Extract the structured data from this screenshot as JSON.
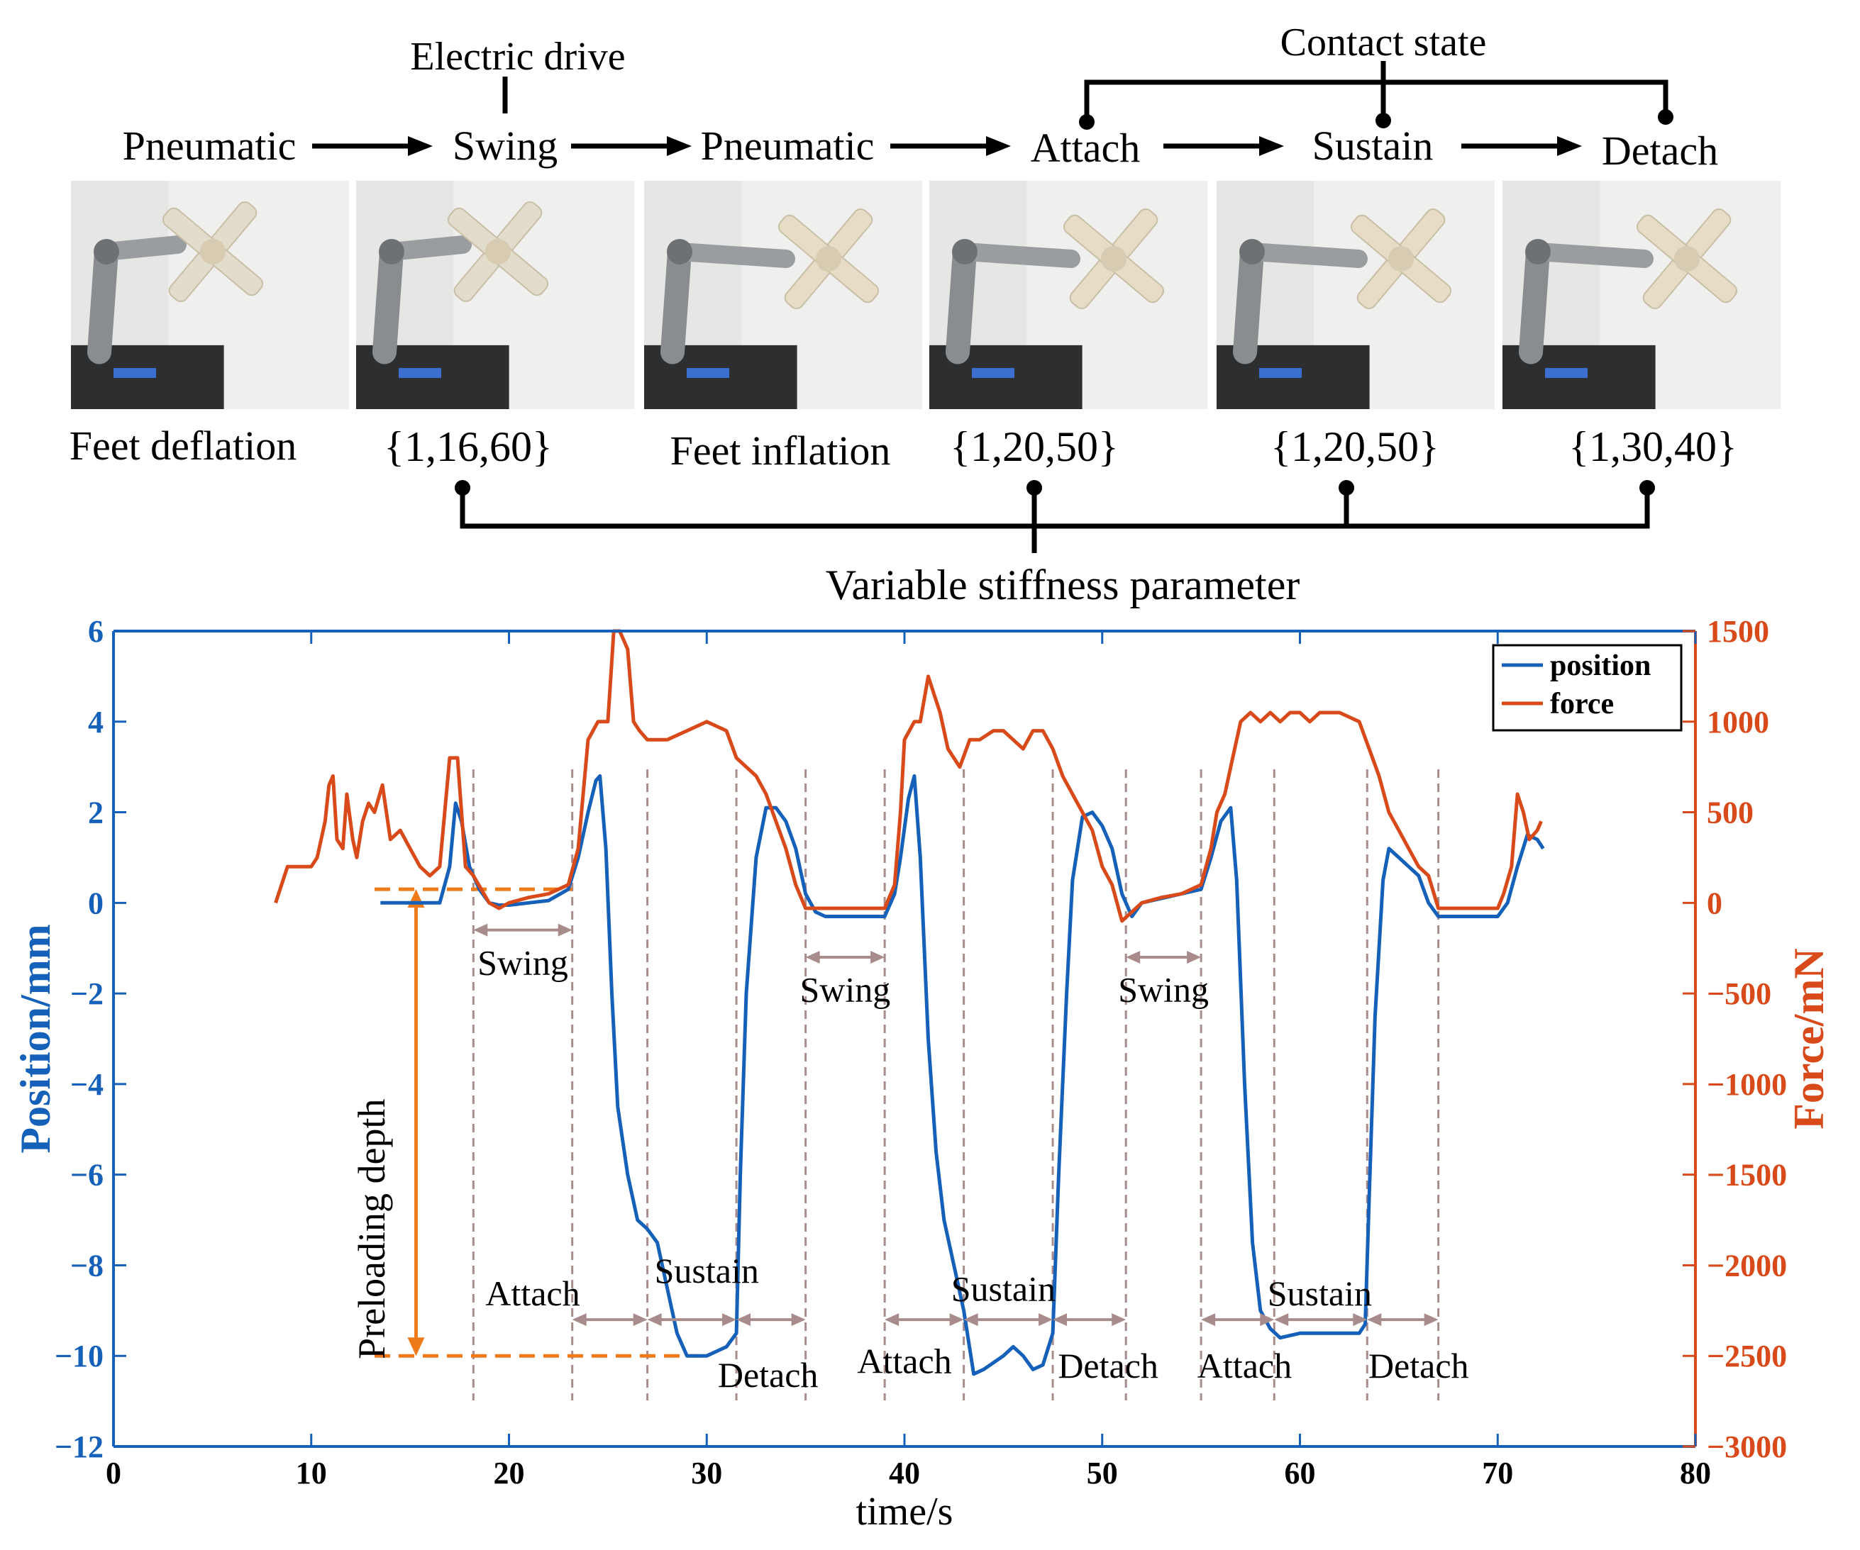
{
  "diagram": {
    "top_labels": {
      "electric_drive": "Electric drive",
      "contact_state": "Contact state",
      "variable_stiffness": "Variable stiffness parameter"
    },
    "phases": [
      {
        "label": "Pneumatic",
        "caption": "Feet deflation",
        "photo": "robot-leg-feet-deflated"
      },
      {
        "label": "Swing",
        "caption": "{1,16,60}",
        "photo": "robot-leg-swing"
      },
      {
        "label": "Pneumatic",
        "caption": "Feet inflation",
        "photo": "robot-leg-feet-inflated"
      },
      {
        "label": "Attach",
        "caption": "{1,20,50}",
        "photo": "robot-leg-attach"
      },
      {
        "label": "Sustain",
        "caption": "{1,20,50}",
        "photo": "robot-leg-sustain"
      },
      {
        "label": "Detach",
        "caption": "{1,30,40}",
        "photo": "robot-leg-detach"
      }
    ]
  },
  "colors": {
    "position": "#1560b8",
    "force": "#d94a1a",
    "axis_left": "#1560b8",
    "axis_right": "#d94a1a",
    "preload": "#ef7a1a",
    "annotation": "#a88c8c"
  },
  "chart_data": {
    "type": "line",
    "xlabel": "time/s",
    "ylabel_left": "Position/mm",
    "ylabel_right": "Force/mN",
    "xlim": [
      0,
      80
    ],
    "ylim_left": [
      -12,
      6
    ],
    "ylim_right": [
      -3000,
      1500
    ],
    "xticks": [
      0,
      10,
      20,
      30,
      40,
      50,
      60,
      70,
      80
    ],
    "yticks_left": [
      6,
      4,
      2,
      0,
      -2,
      -4,
      -6,
      -8,
      -10,
      -12
    ],
    "yticks_right": [
      1500,
      1000,
      500,
      0,
      -500,
      -1000,
      -1500,
      -2000,
      -2500,
      -3000
    ],
    "legend": {
      "position": "top-right",
      "entries": [
        "position",
        "force"
      ]
    },
    "series": [
      {
        "name": "position",
        "axis": "left",
        "points": [
          [
            13.5,
            0
          ],
          [
            16.5,
            0
          ],
          [
            17.0,
            0.8
          ],
          [
            17.3,
            2.2
          ],
          [
            17.6,
            1.8
          ],
          [
            18.0,
            0.8
          ],
          [
            18.5,
            0.3
          ],
          [
            19,
            0.0
          ],
          [
            19.5,
            -0.05
          ],
          [
            20,
            -0.05
          ],
          [
            21,
            0.0
          ],
          [
            22,
            0.05
          ],
          [
            23,
            0.3
          ],
          [
            23.5,
            1.0
          ],
          [
            24,
            2.0
          ],
          [
            24.4,
            2.7
          ],
          [
            24.6,
            2.8
          ],
          [
            24.9,
            1.2
          ],
          [
            25.2,
            -2.0
          ],
          [
            25.5,
            -4.5
          ],
          [
            26,
            -6.0
          ],
          [
            26.5,
            -7.0
          ],
          [
            27,
            -7.2
          ],
          [
            27.5,
            -7.5
          ],
          [
            28,
            -8.5
          ],
          [
            28.5,
            -9.5
          ],
          [
            29,
            -10
          ],
          [
            30,
            -10
          ],
          [
            31,
            -9.8
          ],
          [
            31.5,
            -9.5
          ],
          [
            31.7,
            -6
          ],
          [
            32,
            -2
          ],
          [
            32.5,
            1
          ],
          [
            33,
            2.1
          ],
          [
            33.5,
            2.1
          ],
          [
            34,
            1.8
          ],
          [
            34.5,
            1.2
          ],
          [
            35,
            0.2
          ],
          [
            35.5,
            -0.2
          ],
          [
            36,
            -0.3
          ],
          [
            38,
            -0.3
          ],
          [
            39,
            -0.3
          ],
          [
            39.5,
            0.2
          ],
          [
            39.8,
            1.0
          ],
          [
            40.2,
            2.3
          ],
          [
            40.5,
            2.8
          ],
          [
            40.8,
            1.0
          ],
          [
            41.2,
            -3.0
          ],
          [
            41.6,
            -5.5
          ],
          [
            42,
            -7.0
          ],
          [
            42.5,
            -8.0
          ],
          [
            43,
            -9.0
          ],
          [
            43.5,
            -10.4
          ],
          [
            44,
            -10.3
          ],
          [
            45,
            -10.0
          ],
          [
            45.5,
            -9.8
          ],
          [
            46,
            -10.0
          ],
          [
            46.5,
            -10.3
          ],
          [
            47,
            -10.2
          ],
          [
            47.5,
            -9.5
          ],
          [
            47.8,
            -6
          ],
          [
            48.2,
            -2
          ],
          [
            48.5,
            0.5
          ],
          [
            49,
            1.9
          ],
          [
            49.5,
            2.0
          ],
          [
            50,
            1.7
          ],
          [
            50.5,
            1.2
          ],
          [
            51,
            0.2
          ],
          [
            51.5,
            -0.3
          ],
          [
            52,
            0
          ],
          [
            54,
            0.2
          ],
          [
            55,
            0.3
          ],
          [
            55.5,
            1.0
          ],
          [
            56,
            1.8
          ],
          [
            56.5,
            2.1
          ],
          [
            56.8,
            0.5
          ],
          [
            57.2,
            -4
          ],
          [
            57.6,
            -7.5
          ],
          [
            58,
            -9.0
          ],
          [
            58.5,
            -9.4
          ],
          [
            59,
            -9.6
          ],
          [
            60,
            -9.5
          ],
          [
            61,
            -9.5
          ],
          [
            62,
            -9.5
          ],
          [
            63,
            -9.5
          ],
          [
            63.3,
            -9.3
          ],
          [
            63.5,
            -6.5
          ],
          [
            63.8,
            -2.5
          ],
          [
            64.2,
            0.5
          ],
          [
            64.5,
            1.2
          ],
          [
            65,
            1.0
          ],
          [
            65.5,
            0.8
          ],
          [
            66,
            0.6
          ],
          [
            66.5,
            0.0
          ],
          [
            67,
            -0.3
          ],
          [
            69,
            -0.3
          ],
          [
            70,
            -0.3
          ],
          [
            70.5,
            0
          ],
          [
            71,
            0.8
          ],
          [
            71.5,
            1.5
          ],
          [
            72,
            1.4
          ],
          [
            72.3,
            1.2
          ]
        ]
      },
      {
        "name": "force",
        "axis": "right",
        "points": [
          [
            8.2,
            0
          ],
          [
            8.5,
            100
          ],
          [
            8.8,
            200
          ],
          [
            10,
            200
          ],
          [
            10.3,
            250
          ],
          [
            10.5,
            350
          ],
          [
            10.7,
            450
          ],
          [
            10.9,
            650
          ],
          [
            11.1,
            700
          ],
          [
            11.3,
            350
          ],
          [
            11.6,
            300
          ],
          [
            11.8,
            600
          ],
          [
            12.1,
            350
          ],
          [
            12.3,
            250
          ],
          [
            12.6,
            450
          ],
          [
            12.9,
            550
          ],
          [
            13.2,
            500
          ],
          [
            13.6,
            650
          ],
          [
            14,
            350
          ],
          [
            14.5,
            400
          ],
          [
            15,
            300
          ],
          [
            15.5,
            200
          ],
          [
            16,
            150
          ],
          [
            16.5,
            200
          ],
          [
            17,
            800
          ],
          [
            17.4,
            800
          ],
          [
            17.8,
            200
          ],
          [
            18.2,
            150
          ],
          [
            19,
            0
          ],
          [
            19.5,
            -30
          ],
          [
            20,
            0
          ],
          [
            21,
            30
          ],
          [
            22,
            50
          ],
          [
            23,
            100
          ],
          [
            23.5,
            300
          ],
          [
            24,
            900
          ],
          [
            24.5,
            1000
          ],
          [
            25,
            1000
          ],
          [
            25.3,
            1500
          ],
          [
            25.6,
            1500
          ],
          [
            26,
            1400
          ],
          [
            26.3,
            1000
          ],
          [
            26.6,
            950
          ],
          [
            27,
            900
          ],
          [
            28,
            900
          ],
          [
            29,
            950
          ],
          [
            30,
            1000
          ],
          [
            31,
            950
          ],
          [
            31.5,
            800
          ],
          [
            32.5,
            700
          ],
          [
            33,
            600
          ],
          [
            34,
            300
          ],
          [
            34.5,
            100
          ],
          [
            35,
            -30
          ],
          [
            36,
            -30
          ],
          [
            38,
            -30
          ],
          [
            39,
            -30
          ],
          [
            39.5,
            100
          ],
          [
            39.8,
            500
          ],
          [
            40,
            900
          ],
          [
            40.5,
            1000
          ],
          [
            40.8,
            1000
          ],
          [
            41.2,
            1250
          ],
          [
            41.5,
            1150
          ],
          [
            41.8,
            1050
          ],
          [
            42.2,
            850
          ],
          [
            42.8,
            750
          ],
          [
            43.3,
            900
          ],
          [
            43.8,
            900
          ],
          [
            44.5,
            950
          ],
          [
            45,
            950
          ],
          [
            45.5,
            900
          ],
          [
            46,
            850
          ],
          [
            46.5,
            950
          ],
          [
            47,
            950
          ],
          [
            47.5,
            850
          ],
          [
            48,
            700
          ],
          [
            48.5,
            600
          ],
          [
            49,
            500
          ],
          [
            49.5,
            400
          ],
          [
            50,
            200
          ],
          [
            50.5,
            100
          ],
          [
            51,
            -100
          ],
          [
            51.5,
            -50
          ],
          [
            52,
            0
          ],
          [
            53,
            30
          ],
          [
            54,
            50
          ],
          [
            55,
            100
          ],
          [
            55.5,
            300
          ],
          [
            55.8,
            500
          ],
          [
            56.2,
            600
          ],
          [
            56.6,
            800
          ],
          [
            57,
            1000
          ],
          [
            57.5,
            1050
          ],
          [
            58,
            1000
          ],
          [
            58.5,
            1050
          ],
          [
            59,
            1000
          ],
          [
            59.5,
            1050
          ],
          [
            60,
            1050
          ],
          [
            60.5,
            1000
          ],
          [
            61,
            1050
          ],
          [
            62,
            1050
          ],
          [
            63,
            1000
          ],
          [
            63.5,
            850
          ],
          [
            64,
            700
          ],
          [
            64.5,
            500
          ],
          [
            65,
            400
          ],
          [
            65.5,
            300
          ],
          [
            66,
            200
          ],
          [
            66.5,
            150
          ],
          [
            67,
            -30
          ],
          [
            68,
            -30
          ],
          [
            69,
            -30
          ],
          [
            70,
            -30
          ],
          [
            70.3,
            50
          ],
          [
            70.7,
            200
          ],
          [
            71,
            600
          ],
          [
            71.3,
            500
          ],
          [
            71.6,
            350
          ],
          [
            72,
            400
          ],
          [
            72.2,
            450
          ]
        ]
      }
    ],
    "phase_markers_x": [
      18.2,
      23.2,
      27.0,
      31.5,
      35.0,
      39.0,
      43.0,
      47.5,
      51.2,
      55.0,
      58.7,
      63.4,
      67.0
    ],
    "preload": {
      "label": "Preloading depth",
      "top": 0.3,
      "bottom": -10
    },
    "annotations": [
      {
        "text": "Swing",
        "x0": 18.2,
        "x1": 23.2,
        "y": -0.6,
        "label_y": -1.3,
        "label_x": 20.7
      },
      {
        "text": "Swing",
        "x0": 35.0,
        "x1": 39.0,
        "y": -1.2,
        "label_y": -1.9,
        "label_x": 37.0
      },
      {
        "text": "Swing",
        "x0": 51.2,
        "x1": 55.0,
        "y": -1.2,
        "label_y": -1.9,
        "label_x": 53.1
      },
      {
        "text": "Attach",
        "x0": 23.2,
        "x1": 27.0,
        "y": -9.2,
        "label_y": -8.6,
        "label_x": 21.2
      },
      {
        "text": "Sustain",
        "x0": 27.0,
        "x1": 31.5,
        "y": -9.2,
        "label_y": -8.1,
        "label_x": 30.0
      },
      {
        "text": "Detach",
        "x0": 31.5,
        "x1": 35.0,
        "y": -9.2,
        "label_y": -10.4,
        "label_x": 33.1
      },
      {
        "text": "Attach",
        "x0": 39.0,
        "x1": 43.0,
        "y": -9.2,
        "label_y": -10.1,
        "label_x": 40.0
      },
      {
        "text": "Sustain",
        "x0": 43.0,
        "x1": 47.5,
        "y": -9.2,
        "label_y": -8.5,
        "label_x": 45.0
      },
      {
        "text": "Detach",
        "x0": 47.5,
        "x1": 51.2,
        "y": -9.2,
        "label_y": -10.2,
        "label_x": 50.3
      },
      {
        "text": "Attach",
        "x0": 55.0,
        "x1": 58.7,
        "y": -9.2,
        "label_y": -10.2,
        "label_x": 57.2
      },
      {
        "text": "Sustain",
        "x0": 58.7,
        "x1": 63.4,
        "y": -9.2,
        "label_y": -8.6,
        "label_x": 61.0
      },
      {
        "text": "Detach",
        "x0": 63.4,
        "x1": 67.0,
        "y": -9.2,
        "label_y": -10.2,
        "label_x": 66.0
      }
    ]
  }
}
